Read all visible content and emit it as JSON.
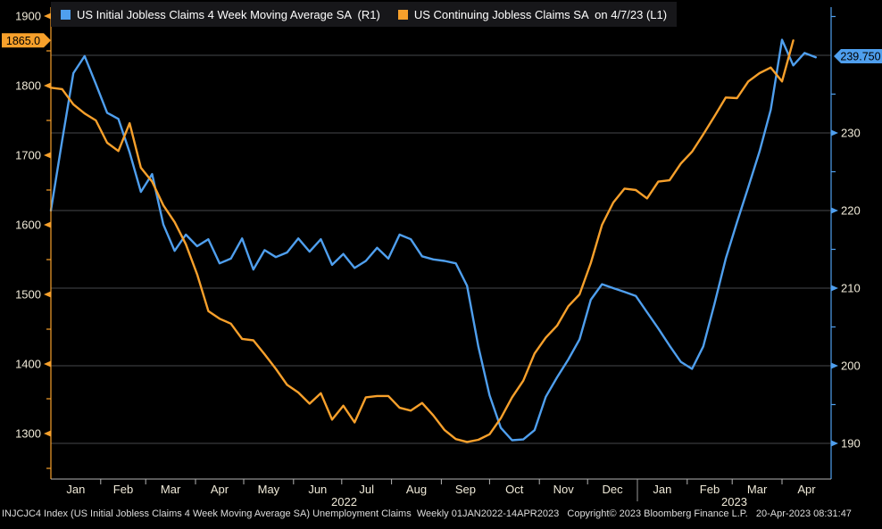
{
  "colors": {
    "background": "#000000",
    "initial_claims_blue": "#4f9fee",
    "continuing_claims_orange": "#f7a02b",
    "gridline": "#46484c",
    "axis_label_text": "#f0ead8",
    "month_text": "#f0ead8",
    "status_text": "#dddddd",
    "badge_text": "#000000",
    "bottom_axis": "#b5b5b5",
    "legend_background": "#17171a"
  },
  "legend": {
    "items": [
      {
        "label": "US Initial Jobless Claims 4 Week Moving Average SA  (R1)",
        "color": "#4f9fee"
      },
      {
        "label": "US Continuing Jobless Claims SA  on 4/7/23 (L1)",
        "color": "#f7a02b"
      }
    ]
  },
  "left_axis": {
    "side": "L1",
    "tick_labels": [
      "1900",
      "1800",
      "1700",
      "1600",
      "1500",
      "1400",
      "1300"
    ],
    "badge_value": "1865.0",
    "color": "#f7a02b"
  },
  "right_axis": {
    "side": "R1",
    "tick_labels": [
      "230",
      "220",
      "210",
      "200",
      "190"
    ],
    "badge_value": "239.750",
    "color": "#4f9fee"
  },
  "x_axis": {
    "month_labels": [
      "Jan",
      "Feb",
      "Mar",
      "Apr",
      "May",
      "Jun",
      "Jul",
      "Aug",
      "Sep",
      "Oct",
      "Nov",
      "Dec",
      "Jan",
      "Feb",
      "Mar",
      "Apr"
    ],
    "year_labels": [
      "2022",
      "2023"
    ]
  },
  "status_bar": {
    "text": "INJCJC4 Index (US Initial Jobless Claims 4 Week Moving Average SA) Unemployment Claims  Weekly 01JAN2022-14APR2023   Copyright© 2023 Bloomberg Finance L.P.   20-Apr-2023 08:31:47"
  },
  "chart_data": {
    "type": "line",
    "x_start_date": "2022-01-01",
    "x_step_days": 7,
    "x_end_date": "2023-04-14",
    "grid": "horizontal",
    "legend_position": "top",
    "ylim_left": [
      1235,
      1913
    ],
    "ylim_right": [
      185.4,
      246.2
    ],
    "left_axis_ticks": [
      1900,
      1800,
      1700,
      1600,
      1500,
      1400,
      1300
    ],
    "right_axis_ticks": [
      240,
      230,
      220,
      210,
      200,
      190
    ],
    "series": [
      {
        "name": "US Initial Jobless Claims 4 Week Moving Average SA",
        "axis": "R1",
        "color": "#4f9fee",
        "last_value_label": "239.750",
        "values": [
          220.0,
          229.0,
          237.7,
          239.9,
          236.3,
          232.6,
          231.8,
          227.5,
          222.4,
          224.7,
          218.2,
          214.8,
          216.9,
          215.4,
          216.3,
          213.2,
          213.8,
          216.4,
          212.4,
          214.9,
          214.0,
          214.6,
          216.4,
          214.7,
          216.3,
          213.0,
          214.4,
          212.6,
          213.5,
          215.2,
          213.8,
          216.9,
          216.3,
          214.1,
          213.7,
          213.5,
          213.2,
          210.3,
          202.5,
          196.2,
          192.0,
          190.4,
          190.5,
          191.7,
          196.0,
          198.5,
          200.8,
          203.4,
          208.5,
          210.5,
          210.0,
          209.5,
          209.0,
          206.9,
          204.8,
          202.6,
          200.5,
          199.6,
          202.5,
          208.0,
          213.8,
          218.5,
          223.0,
          227.6,
          233.0,
          242.0,
          238.7,
          240.3,
          239.75
        ]
      },
      {
        "name": "US Continuing Jobless Claims SA",
        "axis": "L1",
        "color": "#f7a02b",
        "as_of": "4/7/23",
        "last_value_label": "1865.0",
        "values": [
          1797,
          1795,
          1773,
          1760,
          1750,
          1718,
          1706,
          1746,
          1682,
          1662,
          1628,
          1604,
          1572,
          1529,
          1476,
          1465,
          1458,
          1436,
          1434,
          1414,
          1393,
          1370,
          1359,
          1343,
          1358,
          1320,
          1340,
          1316,
          1352,
          1354,
          1354,
          1337,
          1333,
          1344,
          1326,
          1305,
          1292,
          1288,
          1291,
          1299,
          1322,
          1352,
          1376,
          1415,
          1438,
          1455,
          1483,
          1500,
          1545,
          1600,
          1632,
          1652,
          1650,
          1638,
          1662,
          1664,
          1688,
          1705,
          1730,
          1756,
          1783,
          1782,
          1806,
          1818,
          1826,
          1806,
          1865
        ]
      }
    ]
  }
}
